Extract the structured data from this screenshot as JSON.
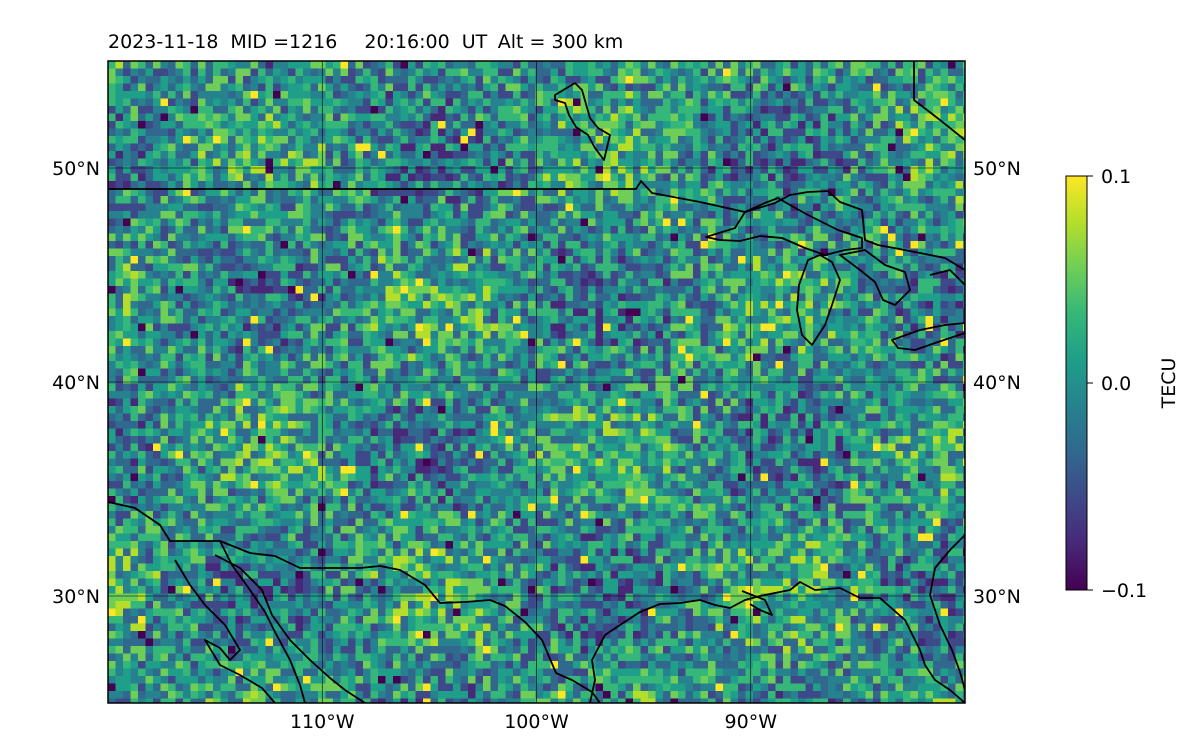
{
  "title": {
    "date": "2023-11-18",
    "mid": "MID =1216",
    "time": "20:16:00",
    "ut": "UT",
    "alt": "Alt = 300 km"
  },
  "map": {
    "lon_range": [
      -120,
      -80
    ],
    "lat_range": [
      25,
      55
    ],
    "gridlines": true,
    "lat_ticks": [
      {
        "value": 30,
        "label": "30°N"
      },
      {
        "value": 40,
        "label": "40°N"
      },
      {
        "value": 50,
        "label": "50°N"
      }
    ],
    "lon_ticks": [
      {
        "value": -110,
        "label": "110°W"
      },
      {
        "value": -100,
        "label": "100°W"
      },
      {
        "value": -90,
        "label": "90°W"
      }
    ]
  },
  "colorbar": {
    "label": "TECU",
    "colormap": "viridis",
    "min": -0.1,
    "max": 0.1,
    "ticks": [
      {
        "value": 0.1,
        "label": "0.1"
      },
      {
        "value": 0.0,
        "label": "0.0"
      },
      {
        "value": -0.1,
        "label": "−0.1"
      }
    ]
  },
  "colors": {
    "viridis": [
      "#440154",
      "#482878",
      "#3e4989",
      "#31688e",
      "#26828e",
      "#1f9e89",
      "#35b779",
      "#6ece58",
      "#b5de2b",
      "#fde725"
    ],
    "coastline": "#000000"
  }
}
